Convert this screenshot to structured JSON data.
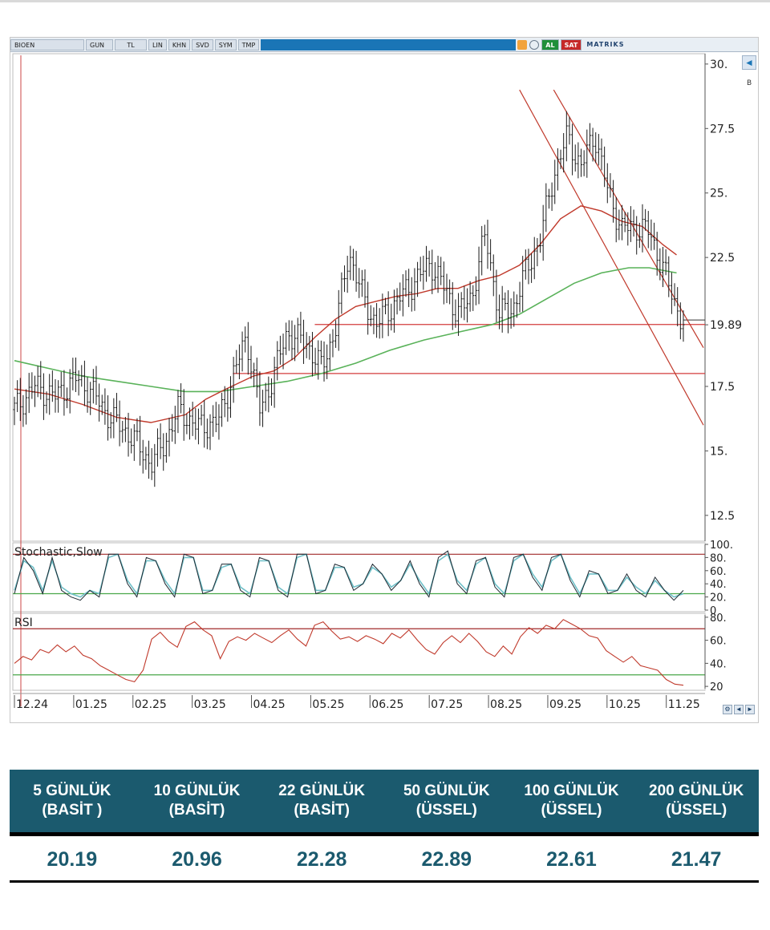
{
  "toolbar": {
    "symbol": "BIOEN",
    "period": "GUN",
    "currency": "TL",
    "buttons": [
      "LIN",
      "KHN",
      "SVD",
      "SYM",
      "TMP"
    ],
    "buy_label": "AL",
    "sell_label": "SAT",
    "brand": "MATRIKS"
  },
  "side": {
    "arrow": "◄",
    "label": "B"
  },
  "colors": {
    "candle": "#1a1a1a",
    "ma_short": "#c0392b",
    "ma_long": "#59b259",
    "support": "#d33b3b",
    "channel": "#c0392b",
    "stoch_line": "#1f2a33",
    "stoch_signal": "#6fc0c8",
    "rsi_line": "#c0392b",
    "upper_band": "#a02a2a",
    "lower_band": "#4aa74a",
    "header_bg": "#1b5a6e",
    "value_text": "#1b5a6e"
  },
  "chart_data": [
    {
      "type": "candlestick",
      "title": "",
      "x_ticks": [
        "12.24",
        "01.25",
        "02.25",
        "03.25",
        "04.25",
        "05.25",
        "06.25",
        "07.25",
        "08.25",
        "09.25",
        "10.25",
        "11.25"
      ],
      "y_ticks": [
        "30.",
        "27.5",
        "25.",
        "22.5",
        "19.89",
        "17.5",
        "15.",
        "12.5"
      ],
      "ylim": [
        11.5,
        30.4
      ],
      "last_price": 19.89,
      "support_levels": [
        19.9,
        18.0
      ],
      "trend_channel": [
        {
          "from": [
            "09.25",
            29.0
          ],
          "to": [
            "11.25",
            16.0
          ]
        },
        {
          "from": [
            "09.25",
            29.0
          ],
          "to": [
            "11.25",
            19.0
          ]
        }
      ],
      "series": [
        {
          "name": "Close",
          "path": [
            [
              0,
              16.6
            ],
            [
              3,
              17.5
            ],
            [
              6,
              17.1
            ],
            [
              9,
              17.8
            ],
            [
              11,
              17.4
            ],
            [
              14,
              16.3
            ],
            [
              17,
              15.6
            ],
            [
              20,
              14.5
            ],
            [
              22,
              15.3
            ],
            [
              24,
              16.6
            ],
            [
              27,
              15.9
            ],
            [
              30,
              16.2
            ],
            [
              32,
              17.9
            ],
            [
              34,
              19.4
            ],
            [
              36,
              16.5
            ],
            [
              38,
              18.0
            ],
            [
              40,
              19.6
            ],
            [
              43,
              19.1
            ],
            [
              45,
              18.2
            ],
            [
              47,
              19.7
            ],
            [
              49,
              22.7
            ],
            [
              51,
              21.0
            ],
            [
              53,
              19.9
            ],
            [
              55,
              20.5
            ],
            [
              57,
              21.1
            ],
            [
              59,
              21.7
            ],
            [
              61,
              22.3
            ],
            [
              63,
              21.3
            ],
            [
              65,
              20.3
            ],
            [
              67,
              21.0
            ],
            [
              69,
              23.4
            ],
            [
              71,
              20.3
            ],
            [
              73,
              20.5
            ],
            [
              75,
              22.0
            ],
            [
              77,
              23.2
            ],
            [
              79,
              25.7
            ],
            [
              81,
              27.2
            ],
            [
              83,
              26.0
            ],
            [
              85,
              27.3
            ],
            [
              87,
              25.0
            ],
            [
              89,
              23.6
            ],
            [
              91,
              23.7
            ],
            [
              93,
              23.5
            ],
            [
              95,
              22.1
            ],
            [
              96,
              21.3
            ],
            [
              98,
              19.9
            ]
          ]
        },
        {
          "name": "MA short",
          "path": [
            [
              0,
              17.4
            ],
            [
              5,
              17.2
            ],
            [
              10,
              16.8
            ],
            [
              15,
              16.3
            ],
            [
              20,
              16.1
            ],
            [
              25,
              16.4
            ],
            [
              28,
              17.0
            ],
            [
              31,
              17.4
            ],
            [
              35,
              17.9
            ],
            [
              38,
              18.1
            ],
            [
              41,
              18.6
            ],
            [
              44,
              19.4
            ],
            [
              47,
              20.1
            ],
            [
              50,
              20.6
            ],
            [
              53,
              20.8
            ],
            [
              56,
              21.0
            ],
            [
              59,
              21.1
            ],
            [
              62,
              21.3
            ],
            [
              65,
              21.3
            ],
            [
              68,
              21.6
            ],
            [
              71,
              21.8
            ],
            [
              74,
              22.2
            ],
            [
              77,
              23.0
            ],
            [
              80,
              24.0
            ],
            [
              83,
              24.5
            ],
            [
              86,
              24.3
            ],
            [
              89,
              23.9
            ],
            [
              92,
              23.7
            ],
            [
              95,
              23.0
            ],
            [
              97,
              22.6
            ]
          ]
        },
        {
          "name": "MA long",
          "path": [
            [
              0,
              18.5
            ],
            [
              5,
              18.2
            ],
            [
              10,
              17.9
            ],
            [
              15,
              17.7
            ],
            [
              20,
              17.5
            ],
            [
              25,
              17.3
            ],
            [
              30,
              17.3
            ],
            [
              35,
              17.5
            ],
            [
              40,
              17.7
            ],
            [
              45,
              18.0
            ],
            [
              50,
              18.4
            ],
            [
              55,
              18.9
            ],
            [
              60,
              19.3
            ],
            [
              65,
              19.6
            ],
            [
              70,
              19.9
            ],
            [
              74,
              20.3
            ],
            [
              78,
              20.9
            ],
            [
              82,
              21.5
            ],
            [
              86,
              21.9
            ],
            [
              90,
              22.1
            ],
            [
              93,
              22.1
            ],
            [
              97,
              21.9
            ]
          ]
        }
      ]
    },
    {
      "type": "line",
      "title": "Stochastic,Slow",
      "y_ticks": [
        "100.",
        "80.",
        "60.",
        "40.",
        "20.",
        "0"
      ],
      "ylim": [
        0,
        100
      ],
      "bands": [
        85,
        25
      ],
      "series": [
        {
          "name": "",
          "values": [
            25,
            80,
            60,
            25,
            80,
            30,
            20,
            15,
            30,
            20,
            85,
            85,
            40,
            20,
            80,
            75,
            40,
            20,
            85,
            80,
            25,
            30,
            70,
            70,
            30,
            20,
            80,
            75,
            30,
            20,
            85,
            85,
            25,
            30,
            70,
            65,
            30,
            40,
            70,
            55,
            30,
            45,
            75,
            40,
            20,
            80,
            90,
            40,
            25,
            75,
            80,
            35,
            20,
            80,
            85,
            50,
            30,
            80,
            85,
            45,
            20,
            60,
            55,
            25,
            30,
            55,
            30,
            20,
            50,
            30,
            15,
            30
          ]
        },
        {
          "name": "",
          "values": [
            30,
            75,
            65,
            30,
            75,
            35,
            25,
            20,
            30,
            25,
            80,
            85,
            45,
            25,
            75,
            75,
            45,
            25,
            80,
            80,
            30,
            30,
            65,
            70,
            35,
            25,
            75,
            75,
            35,
            25,
            80,
            85,
            30,
            30,
            65,
            65,
            35,
            40,
            65,
            55,
            35,
            45,
            70,
            45,
            25,
            75,
            85,
            45,
            30,
            70,
            80,
            40,
            25,
            75,
            85,
            55,
            35,
            75,
            85,
            50,
            25,
            55,
            55,
            30,
            30,
            50,
            35,
            25,
            45,
            30,
            20,
            25
          ]
        }
      ]
    },
    {
      "type": "line",
      "title": "RSI",
      "y_ticks": [
        "80.",
        "60.",
        "40.",
        "20"
      ],
      "ylim": [
        18,
        82
      ],
      "bands": [
        70,
        30
      ],
      "series": [
        {
          "name": "",
          "values": [
            40,
            46,
            43,
            52,
            49,
            56,
            50,
            55,
            47,
            44,
            38,
            34,
            30,
            26,
            24,
            34,
            61,
            67,
            59,
            54,
            72,
            76,
            69,
            64,
            44,
            59,
            63,
            60,
            66,
            62,
            58,
            64,
            69,
            61,
            55,
            73,
            76,
            68,
            61,
            63,
            59,
            64,
            61,
            57,
            66,
            62,
            69,
            60,
            52,
            48,
            58,
            64,
            58,
            66,
            59,
            50,
            46,
            55,
            48,
            63,
            71,
            66,
            73,
            70,
            78,
            74,
            70,
            64,
            62,
            51,
            46,
            41,
            46,
            38,
            36,
            34,
            26,
            22,
            21
          ]
        }
      ]
    }
  ],
  "ma_table": {
    "headers": [
      {
        "line1": "5 GÜNLÜK",
        "line2": "(BASİT )"
      },
      {
        "line1": "10 GÜNLÜK",
        "line2": "(BASİT)"
      },
      {
        "line1": "22 GÜNLÜK",
        "line2": "(BASİT)"
      },
      {
        "line1": "50 GÜNLÜK",
        "line2": "(ÜSSEL)"
      },
      {
        "line1": "100 GÜNLÜK",
        "line2": "(ÜSSEL)"
      },
      {
        "line1": "200 GÜNLÜK",
        "line2": "(ÜSSEL)"
      }
    ],
    "values": [
      "20.19",
      "20.96",
      "22.28",
      "22.89",
      "22.61",
      "21.47"
    ]
  }
}
